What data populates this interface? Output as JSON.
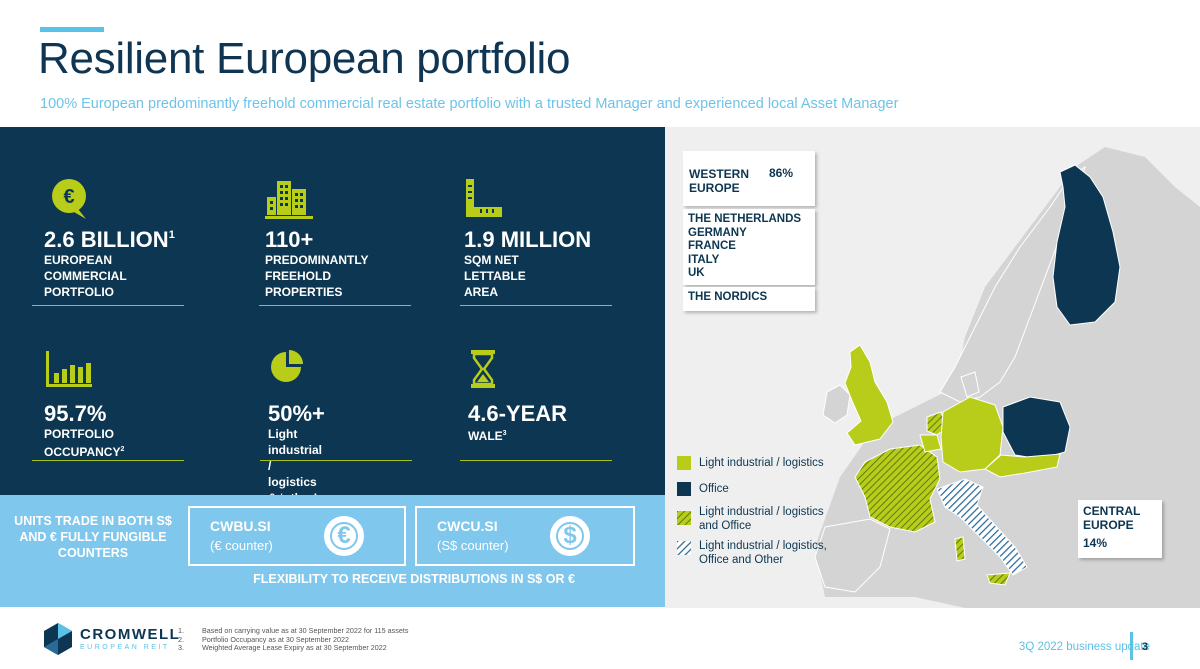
{
  "header": {
    "title": "Resilient European portfolio",
    "subtitle": "100% European predominantly freehold commercial real estate portfolio with a trusted Manager and experienced local Asset Manager"
  },
  "kpis": [
    {
      "icon": "euro-speech-bubble-icon",
      "value": "2.6 BILLION",
      "sup": "1",
      "label": "EUROPEAN\nCOMMERCIAL\nPORTFOLIO"
    },
    {
      "icon": "buildings-icon",
      "value": "110+",
      "sup": "",
      "label": "PREDOMINANTLY\nFREEHOLD\nPROPERTIES"
    },
    {
      "icon": "ruler-area-icon",
      "value": "1.9 MILLION",
      "sup": "",
      "label": "SQM NET\nLETTABLE AREA"
    },
    {
      "icon": "bar-chart-icon",
      "value": "95.7%",
      "sup": "",
      "label_line1": "PORTFOLIO",
      "label_line2": "OCCUPANCY",
      "label_sup": "2"
    },
    {
      "icon": "pie-chart-icon",
      "value": "50%+",
      "sup": "",
      "label": "Light industrial / logistics\n& ‘other’ exposure"
    },
    {
      "icon": "hourglass-icon",
      "value": "4.6-YEAR",
      "sup": "",
      "label_line1": "WALE",
      "label_sup": "3"
    }
  ],
  "units": {
    "text": "UNITS TRADE IN BOTH S$ AND € FULLY FUNGIBLE COUNTERS",
    "counters": [
      {
        "code": "CWBU.SI",
        "desc": "(€ counter)",
        "symbol": "€"
      },
      {
        "code": "CWCU.SI",
        "desc": "(S$ counter)",
        "symbol": "$"
      }
    ],
    "flexibility": "FLEXIBILITY TO RECEIVE DISTRIBUTIONS IN S$ OR €"
  },
  "map": {
    "western_europe": {
      "name": "WESTERN\nEUROPE",
      "pct": "86%"
    },
    "countries": [
      "THE NETHERLANDS",
      "GERMANY",
      "FRANCE",
      "ITALY",
      "UK"
    ],
    "nordics": "THE NORDICS",
    "central_europe": {
      "name": "CENTRAL\nEUROPE",
      "pct": "14%"
    },
    "legend": [
      {
        "label": "Light industrial / logistics",
        "color": "#b8cc1a"
      },
      {
        "label": "Office",
        "color": "#0c3651"
      },
      {
        "label": "Light industrial / logistics\nand Office",
        "color": "#7a9a1a"
      },
      {
        "label": "Light industrial / logistics,\nOffice and Other",
        "color": "#2a6a96"
      }
    ],
    "colors": {
      "lime": "#b8cc1a",
      "navy": "#0c3651",
      "land": "#d4d4d4"
    }
  },
  "footer": {
    "logo_text": "CROMWELL",
    "logo_sub": "EUROPEAN REIT",
    "footnotes": [
      {
        "num": "1.",
        "text": "Based on carrying value as at 30 September 2022 for 115 assets"
      },
      {
        "num": "2.",
        "text": "Portfolio Occupancy as at 30 September 2022"
      },
      {
        "num": "3.",
        "text": "Weighted Average Lease Expiry as at 30 September 2022"
      }
    ],
    "update_label": "3Q 2022 business update",
    "page_number": "3"
  }
}
